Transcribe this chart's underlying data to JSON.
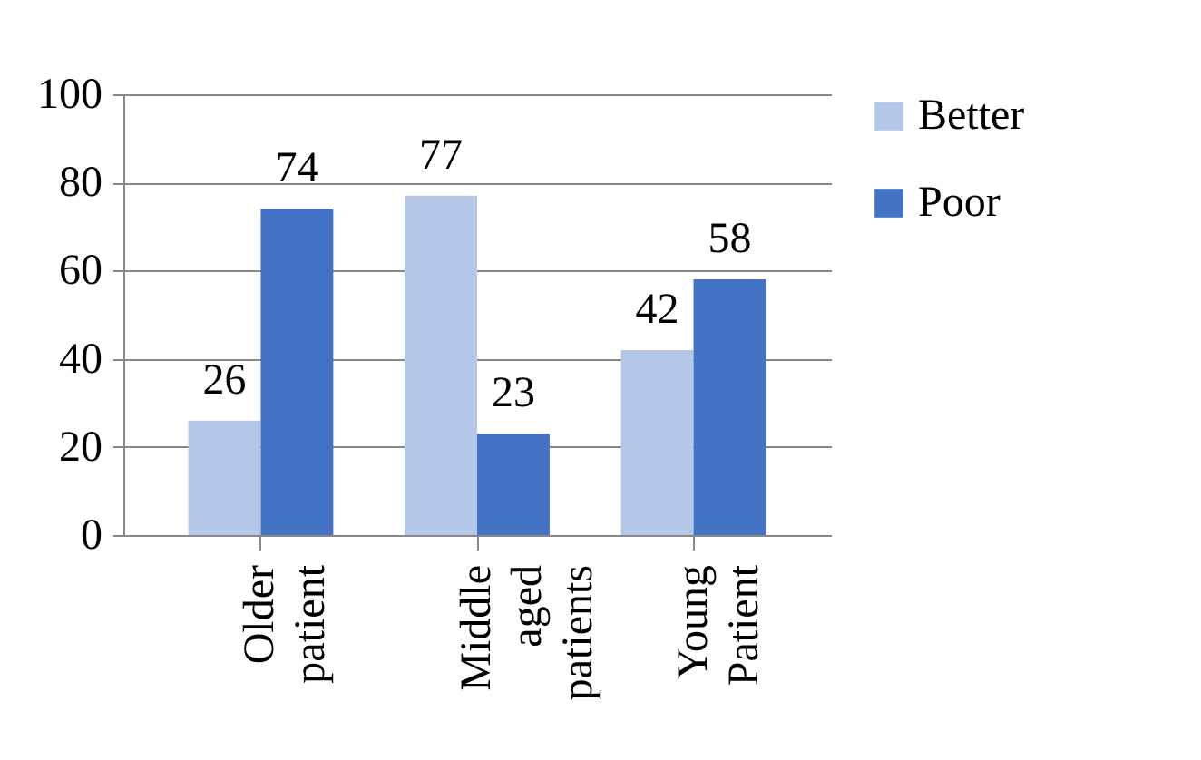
{
  "chart_data": {
    "type": "bar",
    "categories": [
      "Older patient",
      "Middle aged patients",
      "Young Patient"
    ],
    "series": [
      {
        "name": "Better",
        "color": "#b4c7e7",
        "values": [
          26,
          77,
          42
        ]
      },
      {
        "name": "Poor",
        "color": "#4472c4",
        "values": [
          74,
          23,
          58
        ]
      }
    ],
    "ylim": [
      0,
      100
    ],
    "yticks": [
      0,
      20,
      40,
      60,
      80,
      100
    ],
    "grid": "y",
    "legend": "right",
    "data_labels": true
  }
}
